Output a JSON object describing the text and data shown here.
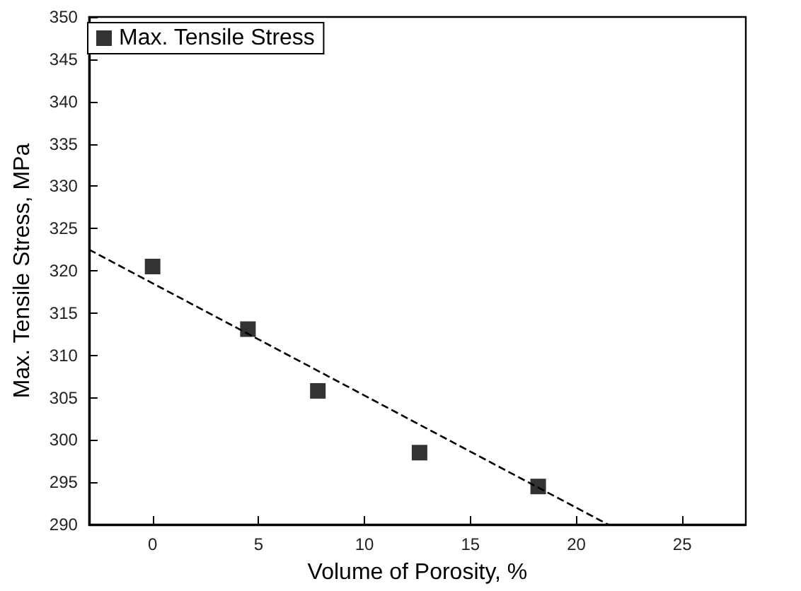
{
  "chart_data": {
    "type": "scatter",
    "xlabel": "Volume of Porosity, %",
    "ylabel": "Max. Tensile Stress, MPa",
    "xlim": [
      -3,
      28
    ],
    "xticks": [
      0,
      5,
      10,
      15,
      20,
      25
    ],
    "ylim": [
      290,
      350
    ],
    "yticks": [
      290,
      295,
      300,
      305,
      310,
      315,
      320,
      325,
      330,
      335,
      340,
      345,
      350
    ],
    "legend": "top left",
    "grid": false,
    "series": [
      {
        "name": "Max. Tensile Stress",
        "marker": "square",
        "color": "#000000",
        "x": [
          0,
          4.5,
          7.8,
          12.6,
          18.2
        ],
        "values": [
          320.5,
          313.1,
          305.8,
          298.5,
          294.5
        ]
      },
      {
        "type": "line",
        "line_style": "dashed",
        "marker": "none",
        "color": "#000000",
        "x": [
          -3,
          21.5
        ],
        "values": [
          322.5,
          290
        ]
      }
    ]
  }
}
